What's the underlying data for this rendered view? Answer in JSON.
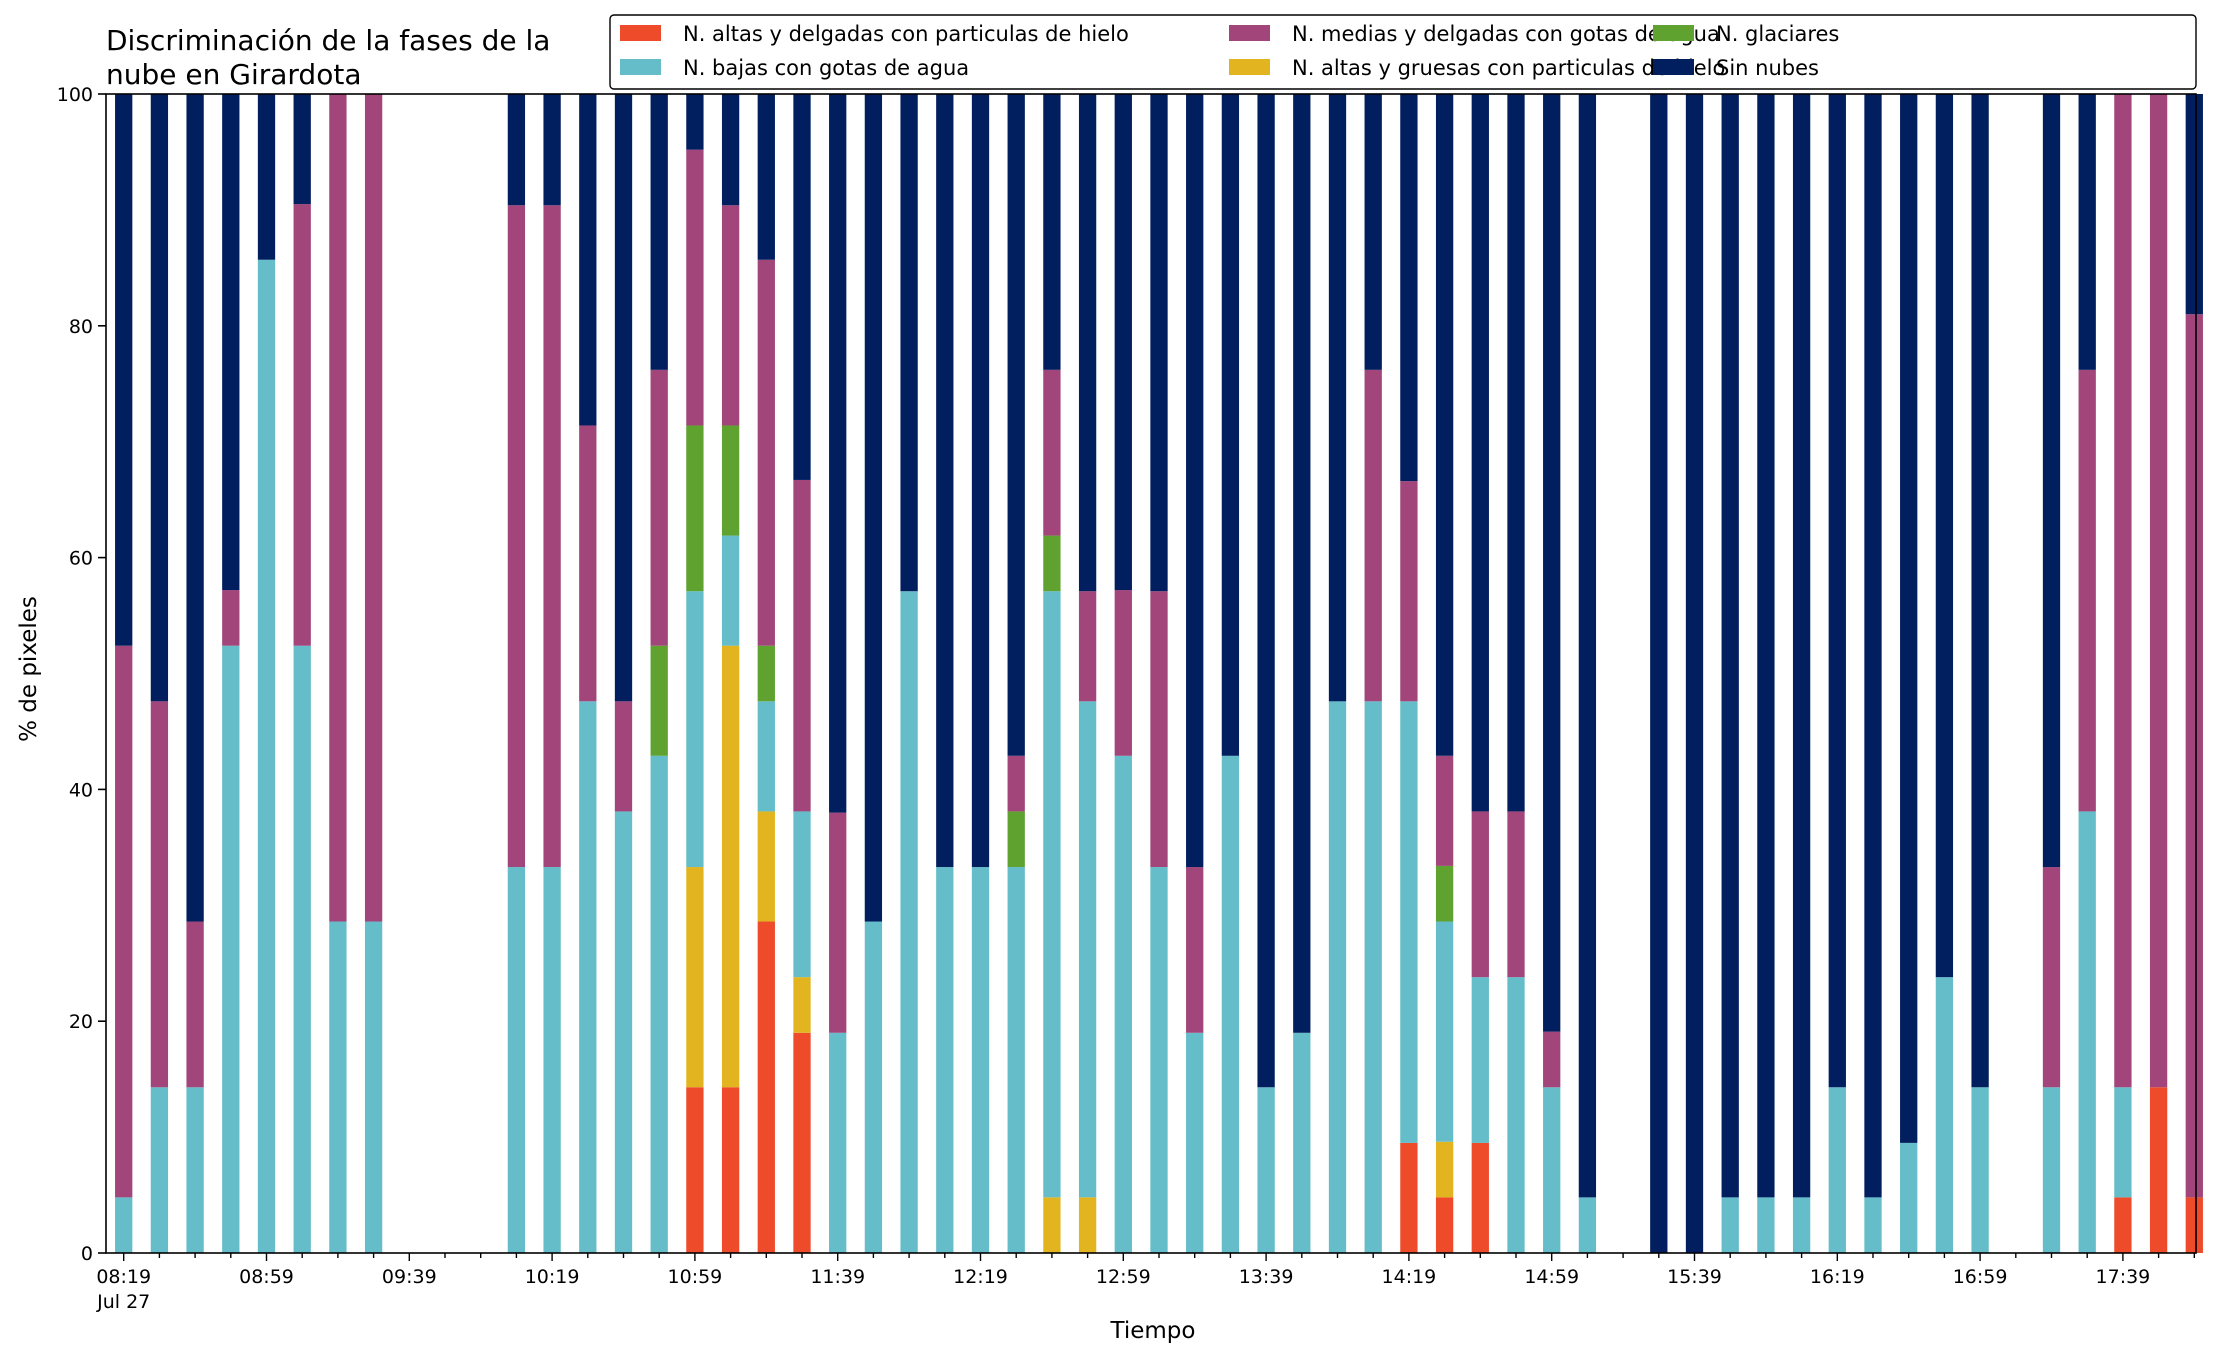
{
  "chart_data": {
    "type": "bar",
    "stacked": true,
    "title_lines": [
      "Discriminación de la fases de la",
      "nube en Girardota"
    ],
    "xlabel": "Tiempo",
    "ylabel": "% de pixeles",
    "ylim": [
      0,
      100
    ],
    "yticks": [
      0,
      20,
      40,
      60,
      80,
      100
    ],
    "grid": false,
    "legend_position": "top-right",
    "legend_columns": 3,
    "x_tick_labels": [
      "08:19",
      "08:59",
      "09:39",
      "10:19",
      "10:59",
      "11:39",
      "12:19",
      "12:59",
      "13:39",
      "14:19",
      "14:59",
      "15:39",
      "16:19",
      "16:59",
      "17:39"
    ],
    "x_date_label": "Jul 27",
    "slot_minutes": 10,
    "start_time": "08:19",
    "series": [
      {
        "key": "alta_delgada",
        "name": "N. altas y delgadas con particulas de hielo",
        "color": "#ee4b2b"
      },
      {
        "key": "alta_gruesa",
        "name": "N. altas y gruesas con particulas de hielo",
        "color": "#e2b520"
      },
      {
        "key": "baja",
        "name": "N. bajas con gotas de agua",
        "color": "#65bdc9"
      },
      {
        "key": "glaciar",
        "name": "N. glaciares",
        "color": "#5fa230"
      },
      {
        "key": "media",
        "name": "N. medias y delgadas con gotas de agua",
        "color": "#a1457a"
      },
      {
        "key": "sin",
        "name": "Sin nubes",
        "color": "#011f5f"
      }
    ],
    "legend_order": [
      "alta_delgada",
      "baja",
      "media",
      "alta_gruesa",
      "glaciar",
      "sin"
    ],
    "bars": [
      {
        "time": "08:19",
        "alta_delgada": 0,
        "alta_gruesa": 0,
        "baja": 4.8,
        "glaciar": 0,
        "media": 47.6,
        "sin": 47.6
      },
      {
        "time": "08:29",
        "alta_delgada": 0,
        "alta_gruesa": 0,
        "baja": 14.3,
        "glaciar": 0,
        "media": 33.3,
        "sin": 52.4
      },
      {
        "time": "08:39",
        "alta_delgada": 0,
        "alta_gruesa": 0,
        "baja": 14.3,
        "glaciar": 0,
        "media": 14.3,
        "sin": 71.4
      },
      {
        "time": "08:49",
        "alta_delgada": 0,
        "alta_gruesa": 0,
        "baja": 52.4,
        "glaciar": 0,
        "media": 4.8,
        "sin": 42.8
      },
      {
        "time": "08:59",
        "alta_delgada": 0,
        "alta_gruesa": 0,
        "baja": 85.7,
        "glaciar": 0,
        "media": 0,
        "sin": 14.3
      },
      {
        "time": "09:09",
        "alta_delgada": 0,
        "alta_gruesa": 0,
        "baja": 52.4,
        "glaciar": 0,
        "media": 38.1,
        "sin": 9.5
      },
      {
        "time": "09:19",
        "alta_delgada": 0,
        "alta_gruesa": 0,
        "baja": 28.6,
        "glaciar": 0,
        "media": 71.4,
        "sin": 0
      },
      {
        "time": "09:29",
        "alta_delgada": 0,
        "alta_gruesa": 0,
        "baja": 28.6,
        "glaciar": 0,
        "media": 71.4,
        "sin": 0
      },
      {
        "time": "10:09",
        "alta_delgada": 0,
        "alta_gruesa": 0,
        "baja": 33.3,
        "glaciar": 0,
        "media": 57.1,
        "sin": 9.6
      },
      {
        "time": "10:19",
        "alta_delgada": 0,
        "alta_gruesa": 0,
        "baja": 33.3,
        "glaciar": 0,
        "media": 57.1,
        "sin": 9.6
      },
      {
        "time": "10:29",
        "alta_delgada": 0,
        "alta_gruesa": 0,
        "baja": 47.6,
        "glaciar": 0,
        "media": 23.8,
        "sin": 28.6
      },
      {
        "time": "10:39",
        "alta_delgada": 0,
        "alta_gruesa": 0,
        "baja": 38.1,
        "glaciar": 0,
        "media": 9.5,
        "sin": 52.4
      },
      {
        "time": "10:49",
        "alta_delgada": 0,
        "alta_gruesa": 0,
        "baja": 42.9,
        "glaciar": 9.5,
        "media": 23.8,
        "sin": 23.8
      },
      {
        "time": "10:59",
        "alta_delgada": 14.3,
        "alta_gruesa": 19.0,
        "baja": 23.8,
        "glaciar": 14.3,
        "media": 23.8,
        "sin": 4.8
      },
      {
        "time": "11:09",
        "alta_delgada": 14.3,
        "alta_gruesa": 38.1,
        "baja": 9.5,
        "glaciar": 9.5,
        "media": 19.0,
        "sin": 9.6
      },
      {
        "time": "11:19",
        "alta_delgada": 28.6,
        "alta_gruesa": 9.5,
        "baja": 9.5,
        "glaciar": 4.8,
        "media": 33.3,
        "sin": 14.3
      },
      {
        "time": "11:29",
        "alta_delgada": 19.0,
        "alta_gruesa": 4.8,
        "baja": 14.3,
        "glaciar": 0,
        "media": 28.6,
        "sin": 33.3
      },
      {
        "time": "11:39",
        "alta_delgada": 0,
        "alta_gruesa": 0,
        "baja": 19.0,
        "glaciar": 0,
        "media": 19.0,
        "sin": 62.0
      },
      {
        "time": "11:49",
        "alta_delgada": 0,
        "alta_gruesa": 0,
        "baja": 28.6,
        "glaciar": 0,
        "media": 0,
        "sin": 71.4
      },
      {
        "time": "11:59",
        "alta_delgada": 0,
        "alta_gruesa": 0,
        "baja": 57.1,
        "glaciar": 0,
        "media": 0,
        "sin": 42.9
      },
      {
        "time": "12:09",
        "alta_delgada": 0,
        "alta_gruesa": 0,
        "baja": 33.3,
        "glaciar": 0,
        "media": 0,
        "sin": 66.7
      },
      {
        "time": "12:19",
        "alta_delgada": 0,
        "alta_gruesa": 0,
        "baja": 33.3,
        "glaciar": 0,
        "media": 0,
        "sin": 66.7
      },
      {
        "time": "12:29",
        "alta_delgada": 0,
        "alta_gruesa": 0,
        "baja": 33.3,
        "glaciar": 4.8,
        "media": 4.8,
        "sin": 57.1
      },
      {
        "time": "12:39",
        "alta_delgada": 0,
        "alta_gruesa": 4.8,
        "baja": 52.3,
        "glaciar": 4.8,
        "media": 14.3,
        "sin": 23.8
      },
      {
        "time": "12:49",
        "alta_delgada": 0,
        "alta_gruesa": 4.8,
        "baja": 42.8,
        "glaciar": 0,
        "media": 9.5,
        "sin": 42.9
      },
      {
        "time": "12:59",
        "alta_delgada": 0,
        "alta_gruesa": 0,
        "baja": 42.9,
        "glaciar": 0,
        "media": 14.3,
        "sin": 42.8
      },
      {
        "time": "13:09",
        "alta_delgada": 0,
        "alta_gruesa": 0,
        "baja": 33.3,
        "glaciar": 0,
        "media": 23.8,
        "sin": 42.9
      },
      {
        "time": "13:19",
        "alta_delgada": 0,
        "alta_gruesa": 0,
        "baja": 19.0,
        "glaciar": 0,
        "media": 14.3,
        "sin": 66.7
      },
      {
        "time": "13:29",
        "alta_delgada": 0,
        "alta_gruesa": 0,
        "baja": 42.9,
        "glaciar": 0,
        "media": 0,
        "sin": 57.1
      },
      {
        "time": "13:39",
        "alta_delgada": 0,
        "alta_gruesa": 0,
        "baja": 14.3,
        "glaciar": 0,
        "media": 0,
        "sin": 85.7
      },
      {
        "time": "13:49",
        "alta_delgada": 0,
        "alta_gruesa": 0,
        "baja": 19.0,
        "glaciar": 0,
        "media": 0,
        "sin": 81.0
      },
      {
        "time": "13:59",
        "alta_delgada": 0,
        "alta_gruesa": 0,
        "baja": 47.6,
        "glaciar": 0,
        "media": 0,
        "sin": 52.4
      },
      {
        "time": "14:09",
        "alta_delgada": 0,
        "alta_gruesa": 0,
        "baja": 47.6,
        "glaciar": 0,
        "media": 28.6,
        "sin": 23.8
      },
      {
        "time": "14:19",
        "alta_delgada": 9.5,
        "alta_gruesa": 0,
        "baja": 38.1,
        "glaciar": 0,
        "media": 19.0,
        "sin": 33.4
      },
      {
        "time": "14:29",
        "alta_delgada": 4.8,
        "alta_gruesa": 4.8,
        "baja": 19.0,
        "glaciar": 4.8,
        "media": 9.5,
        "sin": 57.1
      },
      {
        "time": "14:39",
        "alta_delgada": 9.5,
        "alta_gruesa": 0,
        "baja": 14.3,
        "glaciar": 0,
        "media": 14.3,
        "sin": 61.9
      },
      {
        "time": "14:49",
        "alta_delgada": 0,
        "alta_gruesa": 0,
        "baja": 23.8,
        "glaciar": 0,
        "media": 14.3,
        "sin": 61.9
      },
      {
        "time": "14:59",
        "alta_delgada": 0,
        "alta_gruesa": 0,
        "baja": 14.3,
        "glaciar": 0,
        "media": 4.8,
        "sin": 80.9
      },
      {
        "time": "15:09",
        "alta_delgada": 0,
        "alta_gruesa": 0,
        "baja": 4.8,
        "glaciar": 0,
        "media": 0,
        "sin": 95.2
      },
      {
        "time": "15:29",
        "alta_delgada": 0,
        "alta_gruesa": 0,
        "baja": 0,
        "glaciar": 0,
        "media": 0,
        "sin": 100
      },
      {
        "time": "15:39",
        "alta_delgada": 0,
        "alta_gruesa": 0,
        "baja": 0,
        "glaciar": 0,
        "media": 0,
        "sin": 100
      },
      {
        "time": "15:49",
        "alta_delgada": 0,
        "alta_gruesa": 0,
        "baja": 4.8,
        "glaciar": 0,
        "media": 0,
        "sin": 95.2
      },
      {
        "time": "15:59",
        "alta_delgada": 0,
        "alta_gruesa": 0,
        "baja": 4.8,
        "glaciar": 0,
        "media": 0,
        "sin": 95.2
      },
      {
        "time": "16:09",
        "alta_delgada": 0,
        "alta_gruesa": 0,
        "baja": 4.8,
        "glaciar": 0,
        "media": 0,
        "sin": 95.2
      },
      {
        "time": "16:19",
        "alta_delgada": 0,
        "alta_gruesa": 0,
        "baja": 14.3,
        "glaciar": 0,
        "media": 0,
        "sin": 85.7
      },
      {
        "time": "16:29",
        "alta_delgada": 0,
        "alta_gruesa": 0,
        "baja": 4.8,
        "glaciar": 0,
        "media": 0,
        "sin": 95.2
      },
      {
        "time": "16:39",
        "alta_delgada": 0,
        "alta_gruesa": 0,
        "baja": 9.5,
        "glaciar": 0,
        "media": 0,
        "sin": 90.5
      },
      {
        "time": "16:49",
        "alta_delgada": 0,
        "alta_gruesa": 0,
        "baja": 23.8,
        "glaciar": 0,
        "media": 0,
        "sin": 76.2
      },
      {
        "time": "16:59",
        "alta_delgada": 0,
        "alta_gruesa": 0,
        "baja": 14.3,
        "glaciar": 0,
        "media": 0,
        "sin": 85.7
      },
      {
        "time": "17:19",
        "alta_delgada": 0,
        "alta_gruesa": 0,
        "baja": 14.3,
        "glaciar": 0,
        "media": 19.0,
        "sin": 66.7
      },
      {
        "time": "17:29",
        "alta_delgada": 0,
        "alta_gruesa": 0,
        "baja": 38.1,
        "glaciar": 0,
        "media": 38.1,
        "sin": 23.8
      },
      {
        "time": "17:39",
        "alta_delgada": 4.8,
        "alta_gruesa": 0,
        "baja": 9.5,
        "glaciar": 0,
        "media": 85.7,
        "sin": 0
      },
      {
        "time": "17:49",
        "alta_delgada": 14.3,
        "alta_gruesa": 0,
        "baja": 0,
        "glaciar": 0,
        "media": 85.7,
        "sin": 0
      },
      {
        "time": "17:59",
        "alta_delgada": 4.8,
        "alta_gruesa": 0,
        "baja": 0,
        "glaciar": 0,
        "media": 76.2,
        "sin": 19.0
      }
    ]
  }
}
